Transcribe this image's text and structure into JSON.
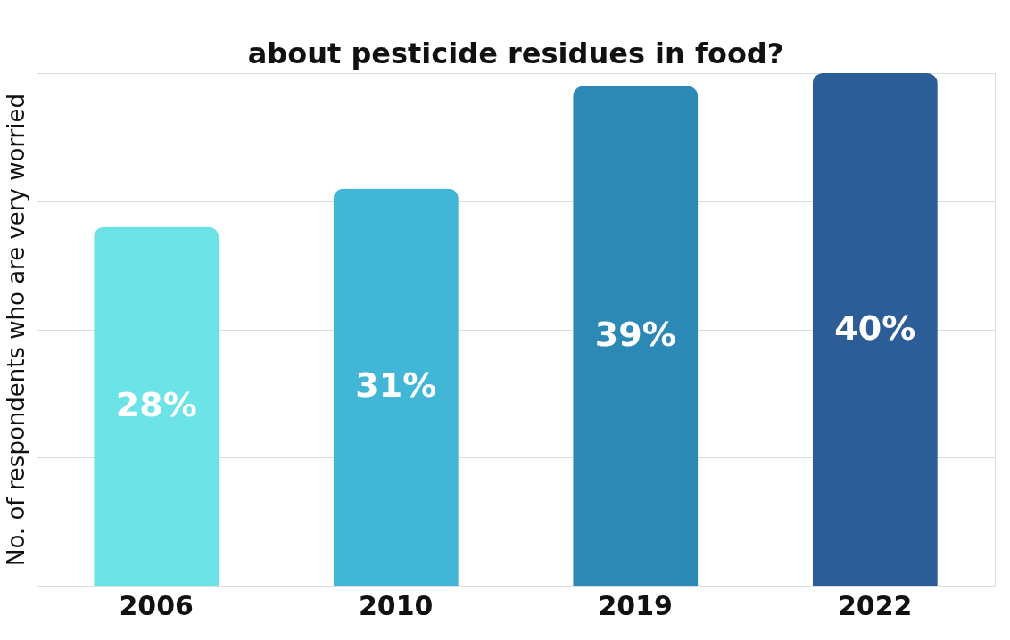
{
  "chart_data": {
    "type": "bar",
    "title": "about pesticide residues in food?",
    "ylabel": "No. of respondents who are very worried",
    "categories": [
      "2006",
      "2010",
      "2019",
      "2022"
    ],
    "values": [
      28,
      31,
      39,
      40
    ],
    "colors": [
      "#6ce3e6",
      "#42b6d6",
      "#2c89b6",
      "#2d5d96"
    ],
    "value_labels": [
      "28%",
      "31%",
      "39%",
      "40%"
    ],
    "ylim": [
      0,
      40
    ],
    "yticks": [
      {
        "value": 0,
        "label": null
      },
      {
        "value": 10,
        "label": null
      },
      {
        "value": 20,
        "label": null
      },
      {
        "value": 30,
        "label": null
      },
      {
        "value": 40,
        "label": null
      }
    ],
    "grid": "y",
    "tick_labels": "x"
  }
}
